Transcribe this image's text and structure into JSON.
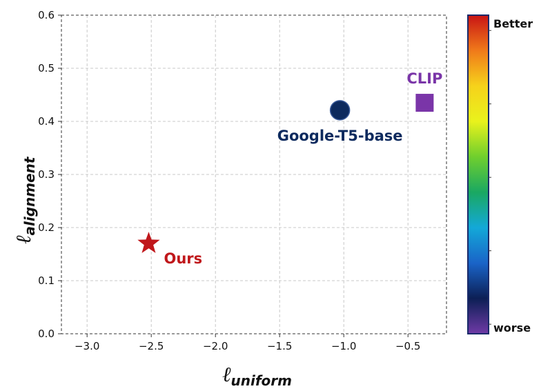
{
  "chart_data": {
    "type": "scatter",
    "xlim": [
      -3.2,
      -0.2
    ],
    "ylim": [
      0.0,
      0.6
    ],
    "xticks": [
      -3.0,
      -2.5,
      -2.0,
      -1.5,
      -1.0,
      -0.5
    ],
    "xtick_labels": [
      "−3.0",
      "−2.5",
      "−2.0",
      "−1.5",
      "−1.0",
      "−0.5"
    ],
    "yticks": [
      0.0,
      0.1,
      0.2,
      0.3,
      0.4,
      0.5,
      0.6
    ],
    "ytick_labels": [
      "0.0",
      "0.1",
      "0.2",
      "0.3",
      "0.4",
      "0.5",
      "0.6"
    ],
    "xlabel": {
      "symbol": "ℓ",
      "subscript": "uniform"
    },
    "ylabel": {
      "symbol": "ℓ",
      "subscript": "alignment"
    },
    "grid": true,
    "points": [
      {
        "name": "Ours",
        "x": -2.52,
        "y": 0.17,
        "marker": "star",
        "color": "#c0171b"
      },
      {
        "name": "Google-T5-base",
        "x": -1.03,
        "y": 0.421,
        "marker": "circle",
        "color": "#0d2a5e"
      },
      {
        "name": "CLIP",
        "x": -0.37,
        "y": 0.435,
        "marker": "square",
        "color": "#7a35a8"
      }
    ],
    "colorbar": {
      "top_label": "Better",
      "bottom_label": "worse",
      "colors_top_to_bottom": [
        "#c81414",
        "#f07a1a",
        "#f6d21b",
        "#e9f21c",
        "#70cf2d",
        "#1aa862",
        "#13a8d8",
        "#1a64c8",
        "#0c1f55",
        "#6f3aa6"
      ]
    }
  }
}
